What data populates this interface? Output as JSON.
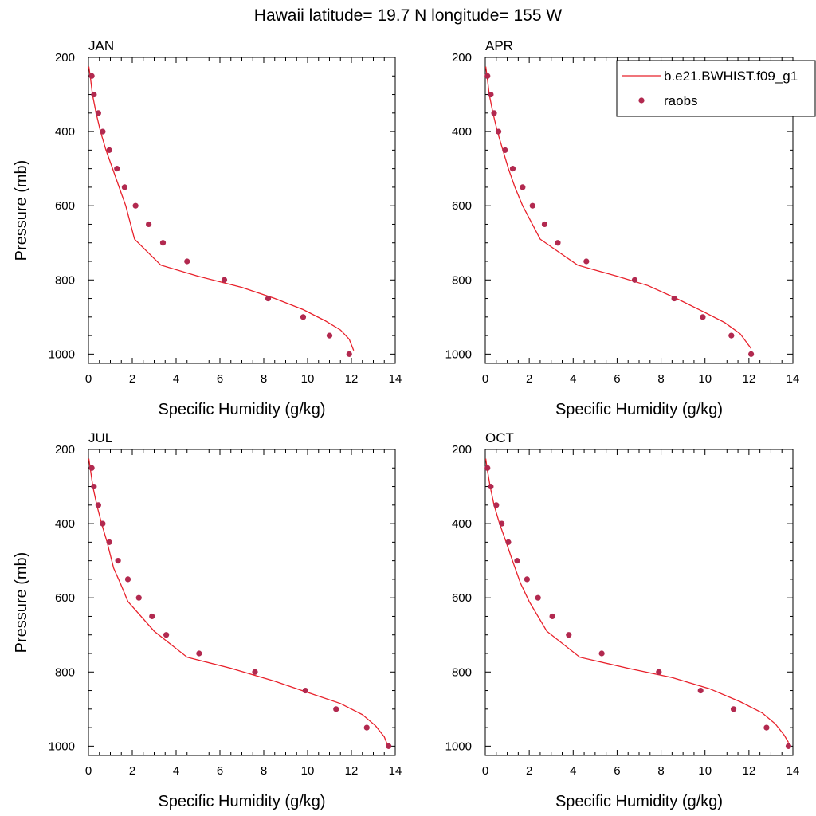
{
  "figure": {
    "title": "Hawaii  latitude= 19.7 N longitude= 155 W",
    "xlabel": "Specific Humidity (g/kg)",
    "ylabel": "Pressure (mb)"
  },
  "legend": {
    "model_label": "b.e21.BWHIST.f09_g1",
    "obs_label": "raobs",
    "placement": "top-right"
  },
  "colors": {
    "model_line": "#e8212b",
    "obs_marker": "#b2294f",
    "axis": "#000000"
  },
  "chart_data": [
    {
      "type": "line+scatter",
      "panel_title": "JAN",
      "xlim": [
        0,
        14
      ],
      "ylim": [
        1025,
        200
      ],
      "y_reversed": true,
      "xticks": [
        0,
        2,
        4,
        6,
        8,
        10,
        12,
        14
      ],
      "yticks": [
        200,
        400,
        600,
        800,
        1000
      ],
      "model": {
        "name": "b.e21.BWHIST.f09_g1",
        "points": [
          [
            0.02,
            225
          ],
          [
            0.08,
            250
          ],
          [
            0.18,
            300
          ],
          [
            0.35,
            350
          ],
          [
            0.55,
            400
          ],
          [
            0.8,
            450
          ],
          [
            1.1,
            500
          ],
          [
            1.4,
            550
          ],
          [
            1.7,
            600
          ],
          [
            2.1,
            690
          ],
          [
            3.3,
            760
          ],
          [
            5.0,
            790
          ],
          [
            7.0,
            820
          ],
          [
            8.5,
            850
          ],
          [
            9.8,
            880
          ],
          [
            10.8,
            910
          ],
          [
            11.5,
            935
          ],
          [
            11.9,
            960
          ],
          [
            12.1,
            990
          ]
        ]
      },
      "raobs": {
        "name": "raobs",
        "points": [
          [
            0.15,
            250
          ],
          [
            0.25,
            300
          ],
          [
            0.45,
            350
          ],
          [
            0.65,
            400
          ],
          [
            0.95,
            450
          ],
          [
            1.3,
            500
          ],
          [
            1.65,
            550
          ],
          [
            2.15,
            600
          ],
          [
            2.75,
            650
          ],
          [
            3.4,
            700
          ],
          [
            4.5,
            750
          ],
          [
            6.2,
            800
          ],
          [
            8.2,
            850
          ],
          [
            9.8,
            900
          ],
          [
            11.0,
            950
          ],
          [
            11.9,
            1000
          ]
        ]
      }
    },
    {
      "type": "line+scatter",
      "panel_title": "APR",
      "xlim": [
        0,
        14
      ],
      "ylim": [
        1025,
        200
      ],
      "y_reversed": true,
      "xticks": [
        0,
        2,
        4,
        6,
        8,
        10,
        12,
        14
      ],
      "yticks": [
        200,
        400,
        600,
        800,
        1000
      ],
      "model": {
        "name": "b.e21.BWHIST.f09_g1",
        "points": [
          [
            0.02,
            225
          ],
          [
            0.08,
            250
          ],
          [
            0.18,
            300
          ],
          [
            0.35,
            350
          ],
          [
            0.55,
            400
          ],
          [
            0.8,
            450
          ],
          [
            1.05,
            500
          ],
          [
            1.35,
            550
          ],
          [
            1.7,
            600
          ],
          [
            2.5,
            690
          ],
          [
            4.2,
            760
          ],
          [
            6.0,
            790
          ],
          [
            7.4,
            815
          ],
          [
            8.7,
            850
          ],
          [
            9.9,
            885
          ],
          [
            10.9,
            915
          ],
          [
            11.6,
            945
          ],
          [
            12.1,
            985
          ]
        ]
      },
      "raobs": {
        "name": "raobs",
        "points": [
          [
            0.1,
            250
          ],
          [
            0.25,
            300
          ],
          [
            0.4,
            350
          ],
          [
            0.6,
            400
          ],
          [
            0.9,
            450
          ],
          [
            1.25,
            500
          ],
          [
            1.7,
            550
          ],
          [
            2.15,
            600
          ],
          [
            2.7,
            650
          ],
          [
            3.3,
            700
          ],
          [
            4.6,
            750
          ],
          [
            6.8,
            800
          ],
          [
            8.6,
            850
          ],
          [
            9.9,
            900
          ],
          [
            11.2,
            950
          ],
          [
            12.1,
            1000
          ]
        ]
      }
    },
    {
      "type": "line+scatter",
      "panel_title": "JUL",
      "xlim": [
        0,
        14
      ],
      "ylim": [
        1025,
        200
      ],
      "y_reversed": true,
      "xticks": [
        0,
        2,
        4,
        6,
        8,
        10,
        12,
        14
      ],
      "yticks": [
        200,
        400,
        600,
        800,
        1000
      ],
      "model": {
        "name": "b.e21.BWHIST.f09_g1",
        "points": [
          [
            0.02,
            225
          ],
          [
            0.08,
            250
          ],
          [
            0.2,
            300
          ],
          [
            0.38,
            350
          ],
          [
            0.6,
            400
          ],
          [
            0.85,
            450
          ],
          [
            1.15,
            520
          ],
          [
            1.45,
            560
          ],
          [
            1.8,
            610
          ],
          [
            3.0,
            690
          ],
          [
            4.5,
            760
          ],
          [
            6.5,
            790
          ],
          [
            8.5,
            825
          ],
          [
            10.0,
            855
          ],
          [
            11.5,
            885
          ],
          [
            12.5,
            915
          ],
          [
            13.1,
            945
          ],
          [
            13.5,
            975
          ],
          [
            13.7,
            1005
          ]
        ]
      },
      "raobs": {
        "name": "raobs",
        "points": [
          [
            0.15,
            250
          ],
          [
            0.25,
            300
          ],
          [
            0.45,
            350
          ],
          [
            0.65,
            400
          ],
          [
            0.95,
            450
          ],
          [
            1.35,
            500
          ],
          [
            1.8,
            550
          ],
          [
            2.3,
            600
          ],
          [
            2.9,
            650
          ],
          [
            3.55,
            700
          ],
          [
            5.05,
            750
          ],
          [
            7.6,
            800
          ],
          [
            9.9,
            850
          ],
          [
            11.3,
            900
          ],
          [
            12.7,
            950
          ],
          [
            13.7,
            1000
          ]
        ]
      }
    },
    {
      "type": "line+scatter",
      "panel_title": "OCT",
      "xlim": [
        0,
        14
      ],
      "ylim": [
        1025,
        200
      ],
      "y_reversed": true,
      "xticks": [
        0,
        2,
        4,
        6,
        8,
        10,
        12,
        14
      ],
      "yticks": [
        200,
        400,
        600,
        800,
        1000
      ],
      "model": {
        "name": "b.e21.BWHIST.f09_g1",
        "points": [
          [
            0.02,
            225
          ],
          [
            0.08,
            250
          ],
          [
            0.22,
            300
          ],
          [
            0.4,
            350
          ],
          [
            0.65,
            400
          ],
          [
            0.95,
            450
          ],
          [
            1.3,
            510
          ],
          [
            1.6,
            560
          ],
          [
            2.0,
            610
          ],
          [
            2.8,
            690
          ],
          [
            4.3,
            760
          ],
          [
            6.5,
            790
          ],
          [
            8.5,
            815
          ],
          [
            10.2,
            845
          ],
          [
            11.6,
            880
          ],
          [
            12.6,
            910
          ],
          [
            13.2,
            940
          ],
          [
            13.6,
            970
          ],
          [
            13.8,
            990
          ]
        ]
      },
      "raobs": {
        "name": "raobs",
        "points": [
          [
            0.1,
            250
          ],
          [
            0.25,
            300
          ],
          [
            0.5,
            350
          ],
          [
            0.75,
            400
          ],
          [
            1.05,
            450
          ],
          [
            1.45,
            500
          ],
          [
            1.9,
            550
          ],
          [
            2.4,
            600
          ],
          [
            3.05,
            650
          ],
          [
            3.8,
            700
          ],
          [
            5.3,
            750
          ],
          [
            7.9,
            800
          ],
          [
            9.8,
            850
          ],
          [
            11.3,
            900
          ],
          [
            12.8,
            950
          ],
          [
            13.8,
            1000
          ]
        ]
      }
    }
  ]
}
